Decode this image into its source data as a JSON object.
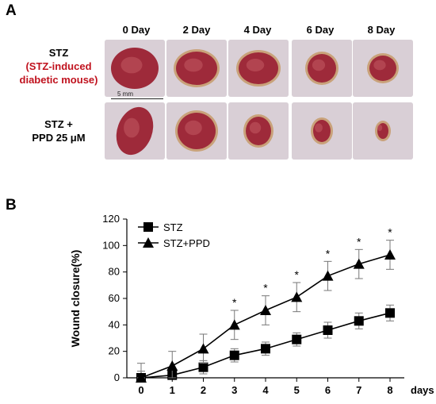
{
  "panel_a": {
    "letter": "A",
    "days": [
      "0 Day",
      "2 Day",
      "4 Day",
      "6 Day",
      "8 Day"
    ],
    "rows": [
      {
        "line1": "STZ",
        "line2": "(STZ-induced",
        "line3": "diabetic mouse)"
      },
      {
        "line1": "STZ +",
        "line2": "PPD 25 μM",
        "line3": ""
      }
    ],
    "scale_label": "5 mm",
    "wound_colors": {
      "skin": "#d9cfd6",
      "wound": "#9e2a3a",
      "scab": "#c9a27a"
    }
  },
  "panel_b": {
    "letter": "B"
  },
  "chart_data": {
    "type": "line",
    "x": [
      0,
      1,
      2,
      3,
      4,
      5,
      6,
      7,
      8
    ],
    "xlabel": "days",
    "ylabel": "Wound closure(%)",
    "ylim": [
      0,
      120
    ],
    "yticks": [
      0,
      20,
      40,
      60,
      80,
      100,
      120
    ],
    "legend_position": "top-left",
    "grid": false,
    "series": [
      {
        "name": "STZ",
        "marker": "square",
        "values": [
          0,
          2,
          8,
          17,
          22,
          29,
          36,
          43,
          49
        ],
        "errors": [
          5,
          4,
          5,
          5,
          5,
          5,
          6,
          6,
          6
        ]
      },
      {
        "name": "STZ+PPD",
        "marker": "triangle",
        "values": [
          0,
          9,
          22,
          40,
          51,
          61,
          77,
          86,
          93
        ],
        "errors": [
          11,
          11,
          11,
          11,
          11,
          11,
          11,
          11,
          11
        ]
      }
    ],
    "significance": {
      "symbol": "*",
      "x": [
        3,
        4,
        5,
        6,
        7,
        8
      ]
    }
  }
}
